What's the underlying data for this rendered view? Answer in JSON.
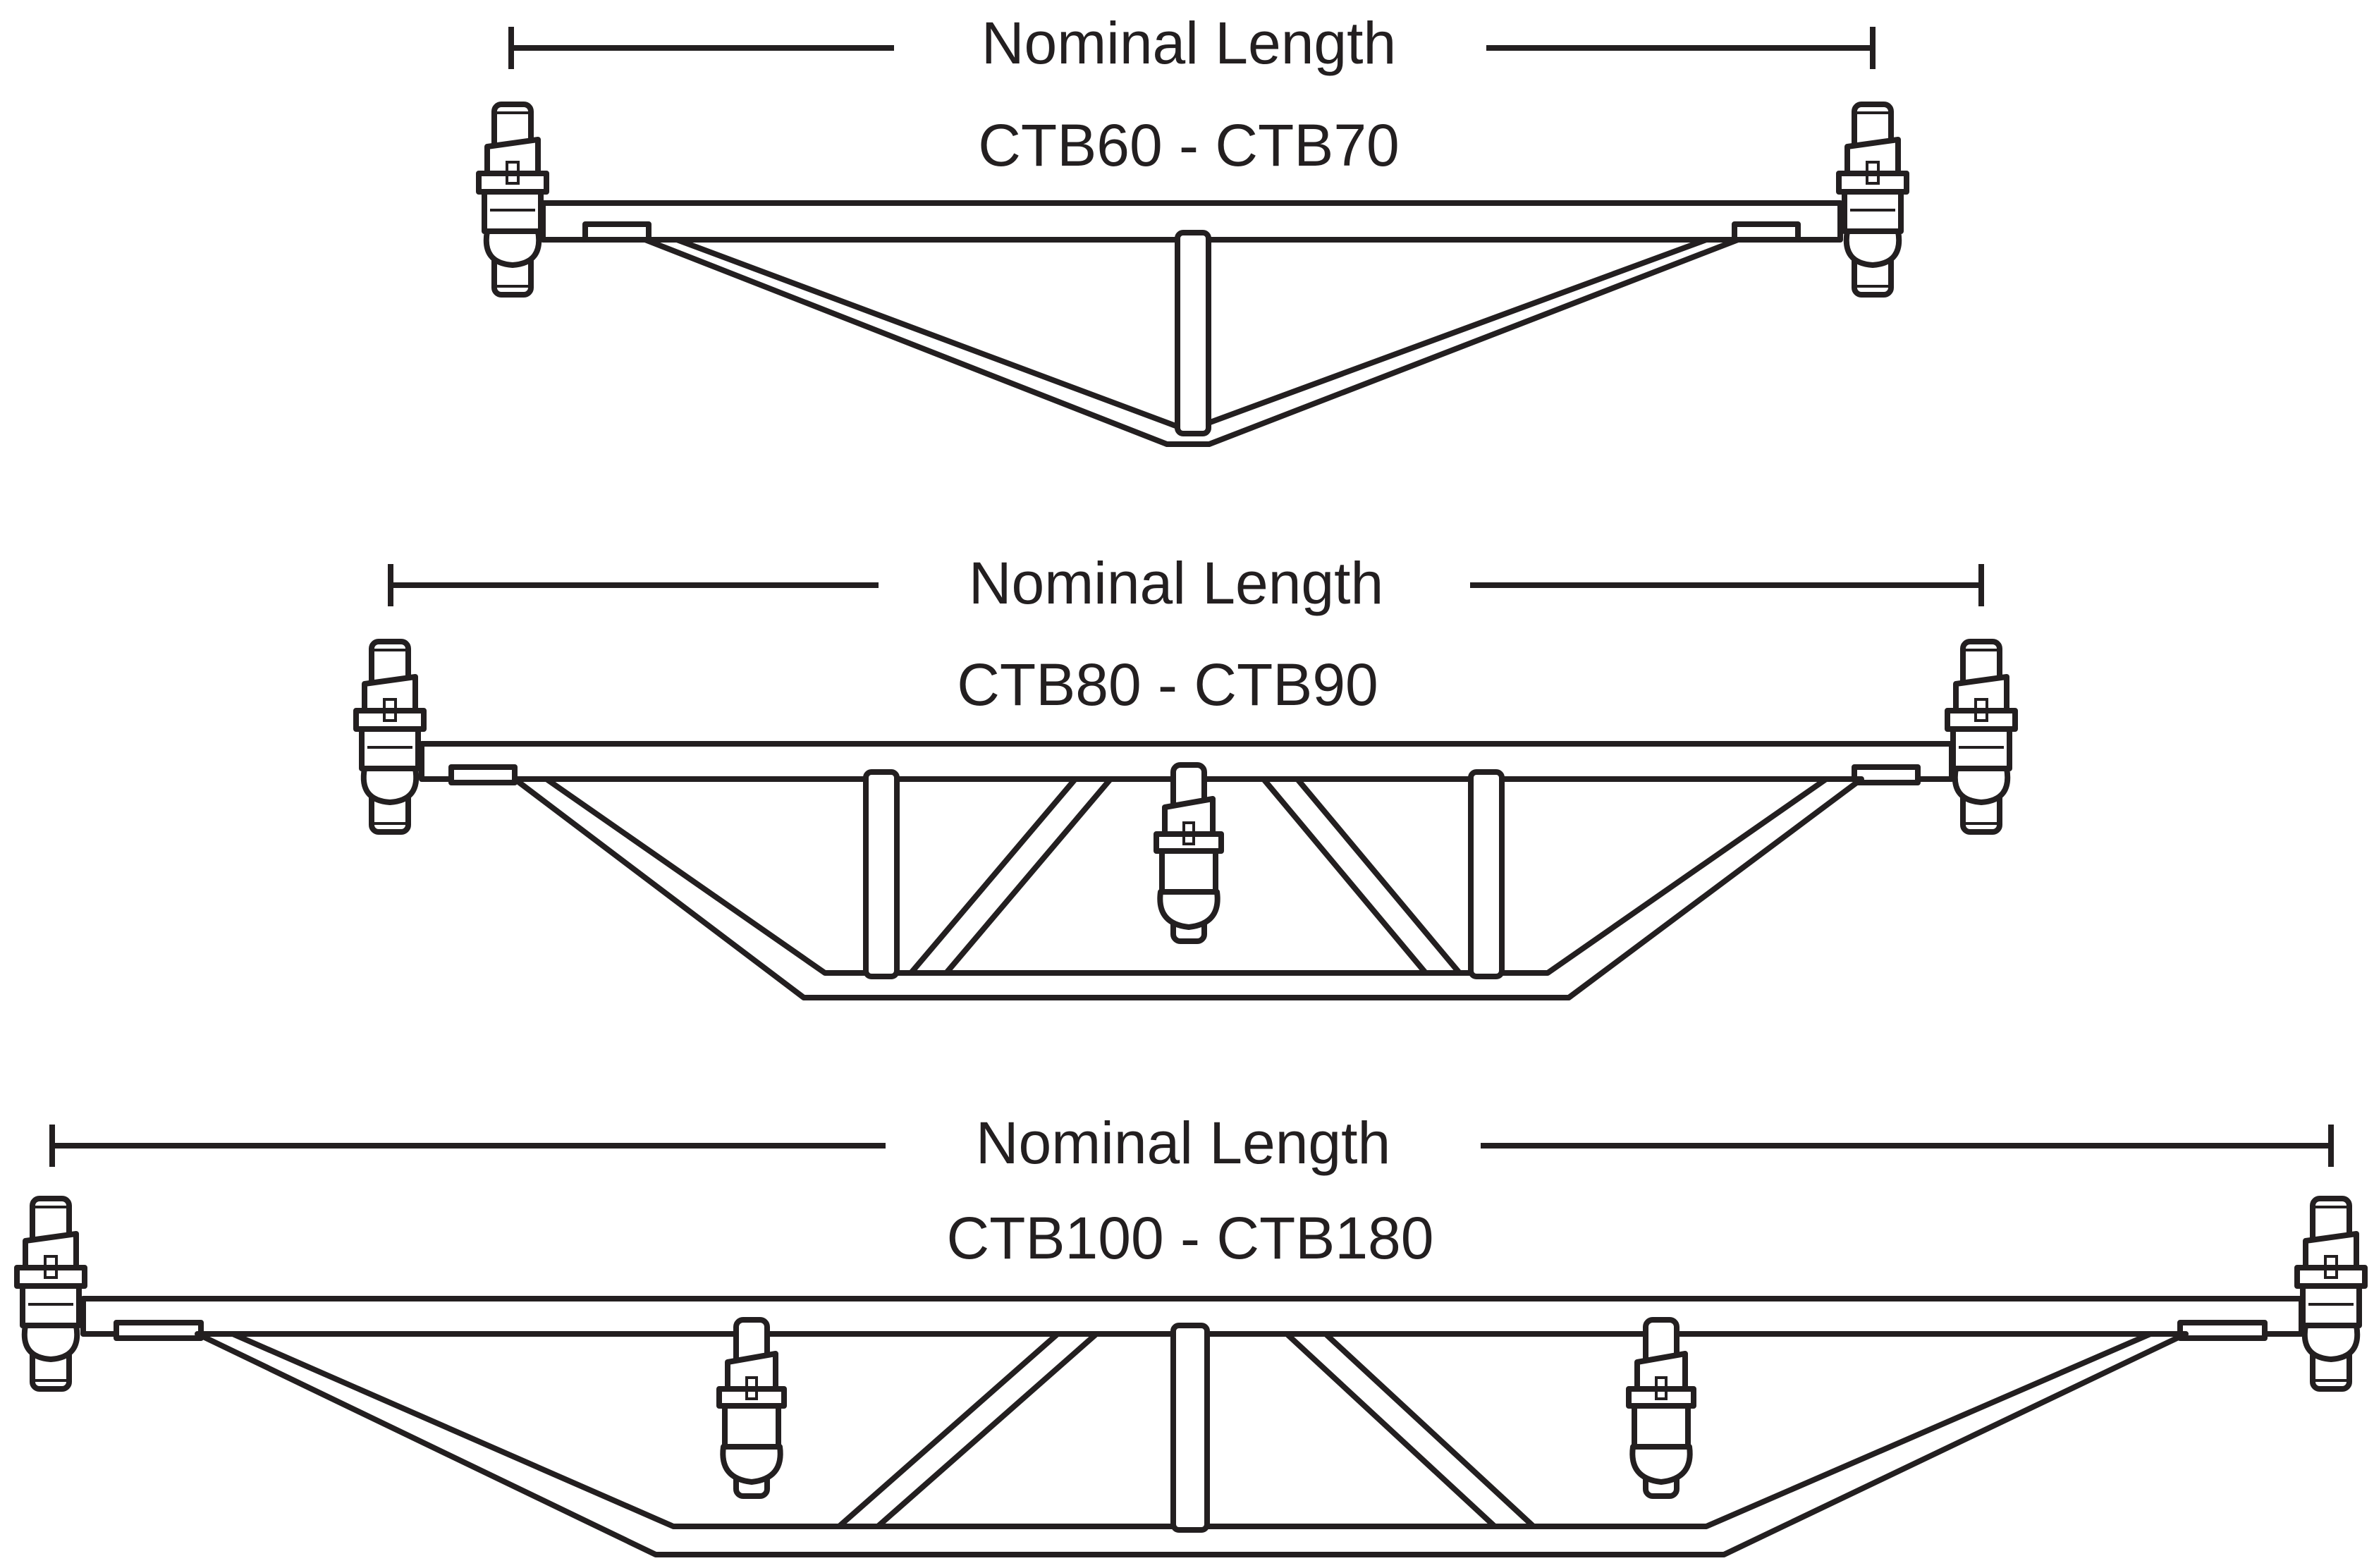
{
  "diagrams": [
    {
      "label": "Nominal Length",
      "model": "CTB60 - CTB70"
    },
    {
      "label": "Nominal Length",
      "model": "CTB80 - CTB90"
    },
    {
      "label": "Nominal Length",
      "model": "CTB100 - CTB180"
    }
  ],
  "colors": {
    "line": "#231f20",
    "background": "#ffffff"
  }
}
